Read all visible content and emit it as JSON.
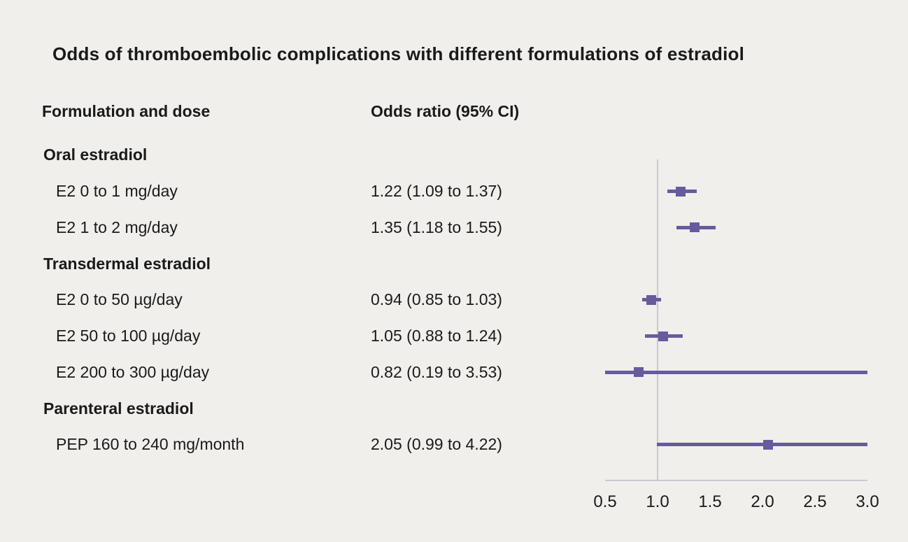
{
  "title": "Odds of thromboembolic complications with different formulations of estradiol",
  "columns": {
    "formulation": "Formulation and dose",
    "odds_ratio": "Odds ratio (95% CI)"
  },
  "colors": {
    "background": "#f0efec",
    "marker": "#675b9e",
    "axis": "#c9c8d6",
    "text": "#1a1a1a"
  },
  "chart_data": {
    "type": "forest",
    "xlim": [
      0.5,
      3.0
    ],
    "reference_line": 1.0,
    "ticks": [
      0.5,
      1.0,
      1.5,
      2.0,
      2.5,
      3.0
    ],
    "tick_labels": [
      "0.5",
      "1.0",
      "1.5",
      "2.0",
      "2.5",
      "3.0"
    ],
    "rows": [
      {
        "type": "group",
        "label": "Oral estradiol"
      },
      {
        "type": "item",
        "label": "E2 0 to 1 mg/day",
        "or_text": "1.22 (1.09 to 1.37)",
        "or": 1.22,
        "ci_low": 1.09,
        "ci_high": 1.37
      },
      {
        "type": "item",
        "label": "E2 1 to 2 mg/day",
        "or_text": "1.35 (1.18 to 1.55)",
        "or": 1.35,
        "ci_low": 1.18,
        "ci_high": 1.55
      },
      {
        "type": "group",
        "label": "Transdermal estradiol"
      },
      {
        "type": "item",
        "label": "E2 0 to 50 µg/day",
        "or_text": "0.94 (0.85 to 1.03)",
        "or": 0.94,
        "ci_low": 0.85,
        "ci_high": 1.03
      },
      {
        "type": "item",
        "label": "E2 50 to 100 µg/day",
        "or_text": "1.05 (0.88 to 1.24)",
        "or": 1.05,
        "ci_low": 0.88,
        "ci_high": 1.24
      },
      {
        "type": "item",
        "label": "E2 200 to 300 µg/day",
        "or_text": "0.82 (0.19 to 3.53)",
        "or": 0.82,
        "ci_low": 0.19,
        "ci_high": 3.53
      },
      {
        "type": "group",
        "label": "Parenteral estradiol"
      },
      {
        "type": "item",
        "label": "PEP 160 to 240 mg/month",
        "or_text": "2.05 (0.99 to 4.22)",
        "or": 2.05,
        "ci_low": 0.99,
        "ci_high": 4.22
      }
    ]
  }
}
